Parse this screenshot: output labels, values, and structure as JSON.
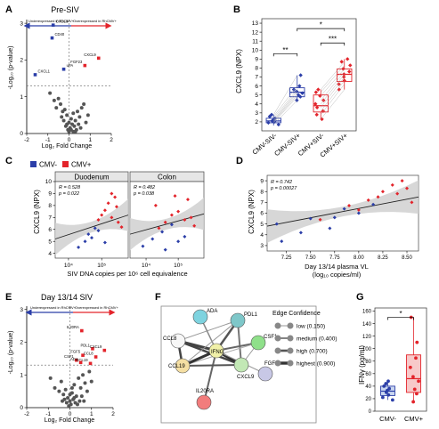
{
  "panels": {
    "A": {
      "letter": "A",
      "title": "Pre-SIV",
      "xlabel": "Log₂ Fold Change",
      "ylabel": "-Log₁₀ (p-value)",
      "arrow_left": "Underexpressed in RhCMV+",
      "arrow_right": "Overexpressed in RhCMV+",
      "xticks": [
        "-2",
        "-1",
        "0",
        "1",
        "2"
      ],
      "yticks": [
        "0",
        "1",
        "2",
        "3"
      ],
      "labels": [
        "CXCL1",
        "CD40",
        "uPA",
        "CXCL8",
        "FGF23",
        "CXCL9"
      ]
    },
    "B": {
      "letter": "B",
      "ylabel": "CXCL9 (NPX)",
      "categories": [
        "CMV-SIV-",
        "CMV-SIV+",
        "CMV+SIV-",
        "CMV+SIV+"
      ],
      "yticks": [
        "2",
        "3",
        "4",
        "5",
        "6",
        "7",
        "8",
        "9",
        "10",
        "11",
        "12",
        "13"
      ],
      "sig": [
        "**",
        "***",
        "*"
      ]
    },
    "C": {
      "letter": "C",
      "legend": [
        "CMV-",
        "CMV+"
      ],
      "facets": [
        "Duodenum",
        "Colon"
      ],
      "stats": [
        [
          "R = 0.528",
          "p = 0.022"
        ],
        [
          "R = 0.482",
          "p = 0.038"
        ]
      ],
      "ylabel": "CXCL9 (NPX)",
      "xlabel": "SIV DNA copies per 10⁶ cell equivalence",
      "yticks": [
        "4",
        "5",
        "6",
        "7",
        "8",
        "9",
        "10"
      ],
      "xticks": [
        "10⁴",
        "10⁵"
      ]
    },
    "D": {
      "letter": "D",
      "stats": [
        "R = 0.742",
        "p = 0.00027"
      ],
      "ylabel": "CXCL9 (NPX)",
      "xlabel1": "Day 13/14 plasma VL",
      "xlabel2": "(log₁₀ copies/ml)",
      "xticks": [
        "7.25",
        "7.50",
        "7.75",
        "8.00",
        "8.25",
        "8.50"
      ],
      "yticks": [
        "3",
        "4",
        "5",
        "6",
        "7",
        "8",
        "9"
      ]
    },
    "E": {
      "letter": "E",
      "title": "Day 13/14 SIV",
      "xlabel": "Log₂ Fold Change",
      "ylabel": "-Log₁₀ (p-value)",
      "arrow_left": "Underexpressed in RhCMV+",
      "arrow_right": "Overexpressed in RhCMV+",
      "xticks": [
        "-2",
        "-1",
        "0",
        "1",
        "2"
      ],
      "yticks": [
        "0",
        "1",
        "2",
        "3"
      ],
      "labels": [
        "IL20RA",
        "PDL1",
        "CXCL9",
        "FGF5",
        "CCL8",
        "CSF1",
        "CCL19",
        "ADA"
      ]
    },
    "F": {
      "letter": "F",
      "nodes": [
        "ADA",
        "PDL1",
        "CCL8",
        "CSF1",
        "IFNG",
        "CCL19",
        "FGF5",
        "CXCL9",
        "IL20RA"
      ],
      "legend_title": "Edge Confidence",
      "legend": [
        "low (0.150)",
        "medium (0.400)",
        "high (0.700)",
        "highest (0.900)"
      ]
    },
    "G": {
      "letter": "G",
      "ylabel": "IFNγ (pg/ml)",
      "categories": [
        "CMV-",
        "CMV+"
      ],
      "yticks": [
        "0",
        "20",
        "40",
        "60",
        "80",
        "100",
        "120",
        "140",
        "160"
      ],
      "sig": "*"
    }
  },
  "colors": {
    "cmv_neg": "#2b3ea8",
    "cmv_pos": "#e3242b",
    "nonsig": "#555555",
    "band": "#d0d0d0"
  },
  "chart_data": [
    {
      "type": "scatter",
      "panel": "A",
      "title": "Pre-SIV",
      "xlabel": "Log2 Fold Change",
      "ylabel": "-Log10 (p-value)",
      "xlim": [
        -2,
        2
      ],
      "ylim": [
        0,
        3.1
      ],
      "threshold_y": 1.3,
      "highlighted": [
        {
          "label": "CXCL1",
          "x": -1.6,
          "y": 1.6,
          "group": "under"
        },
        {
          "label": "CD40",
          "x": -0.8,
          "y": 2.6,
          "group": "under"
        },
        {
          "label": "uPA",
          "x": -0.25,
          "y": 1.75,
          "group": "under"
        },
        {
          "label": "CXCL8",
          "x": -0.75,
          "y": 2.95,
          "group": "under"
        },
        {
          "label": "FGF23",
          "x": 0.75,
          "y": 1.85,
          "group": "over"
        },
        {
          "label": "CXCL9",
          "x": 1.4,
          "y": 2.05,
          "group": "over"
        }
      ],
      "other_points": [
        [
          -0.9,
          1.1
        ],
        [
          -0.7,
          0.9
        ],
        [
          -0.5,
          0.95
        ],
        [
          -0.6,
          0.7
        ],
        [
          -0.4,
          0.8
        ],
        [
          -0.3,
          0.6
        ],
        [
          -0.2,
          0.65
        ],
        [
          -0.1,
          0.5
        ],
        [
          0,
          0.3
        ],
        [
          0.1,
          0.4
        ],
        [
          0.2,
          0.55
        ],
        [
          0.3,
          0.35
        ],
        [
          0.4,
          0.6
        ],
        [
          0.5,
          0.45
        ],
        [
          0.6,
          0.7
        ],
        [
          0.7,
          0.8
        ],
        [
          -0.15,
          0.2
        ],
        [
          0.05,
          0.15
        ],
        [
          0.15,
          0.25
        ],
        [
          -0.05,
          0.1
        ],
        [
          0.25,
          0.2
        ],
        [
          0.35,
          0.1
        ],
        [
          -0.25,
          0.35
        ],
        [
          0.45,
          0.25
        ],
        [
          -0.35,
          0.45
        ],
        [
          0.55,
          0.15
        ],
        [
          0,
          0.05
        ],
        [
          0.1,
          0.1
        ],
        [
          0.2,
          0.05
        ],
        [
          -0.1,
          0.25
        ],
        [
          0.3,
          0.05
        ],
        [
          0.8,
          0.3
        ],
        [
          0.9,
          0.5
        ]
      ]
    },
    {
      "type": "box",
      "panel": "B",
      "ylabel": "CXCL9 (NPX)",
      "ylim": [
        1,
        13.5
      ],
      "categories": [
        "CMV-SIV-",
        "CMV-SIV+",
        "CMV+SIV-",
        "CMV+SIV+"
      ],
      "series": [
        {
          "category": "CMV-SIV-",
          "group": "CMV-",
          "q1": 1.9,
          "median": 2.1,
          "q3": 2.4,
          "whisker_low": 1.6,
          "whisker_high": 2.8,
          "points": [
            1.7,
            1.9,
            2.0,
            2.1,
            2.2,
            2.4,
            2.6,
            2.8
          ]
        },
        {
          "category": "CMV-SIV+",
          "group": "CMV-",
          "q1": 4.8,
          "median": 5.3,
          "q3": 5.8,
          "whisker_low": 4.4,
          "whisker_high": 7.2,
          "points": [
            4.4,
            4.8,
            5.0,
            5.2,
            5.4,
            5.6,
            6.0,
            7.2
          ]
        },
        {
          "category": "CMV+SIV-",
          "group": "CMV+",
          "q1": 3.1,
          "median": 3.8,
          "q3": 5.0,
          "whisker_low": 2.3,
          "whisker_high": 5.6,
          "points": [
            2.3,
            2.8,
            3.2,
            3.6,
            4.0,
            4.4,
            4.9,
            5.3,
            5.6
          ]
        },
        {
          "category": "CMV+SIV+",
          "group": "CMV+",
          "q1": 6.5,
          "median": 7.3,
          "q3": 7.9,
          "whisker_low": 5.6,
          "whisker_high": 9.0,
          "points": [
            5.6,
            6.2,
            6.6,
            7.0,
            7.3,
            7.6,
            7.9,
            8.3,
            8.7,
            9.0
          ]
        }
      ],
      "significance": [
        {
          "from": 0,
          "to": 1,
          "label": "**"
        },
        {
          "from": 2,
          "to": 3,
          "label": "***"
        },
        {
          "from": 1,
          "to": 3,
          "label": "*"
        }
      ]
    },
    {
      "type": "scatter",
      "panel": "C",
      "ylabel": "CXCL9 (NPX)",
      "xlabel": "SIV DNA copies per 10^6 cell equivalence",
      "ylim": [
        3.6,
        10
      ],
      "facets": [
        {
          "name": "Duodenum",
          "R": 0.528,
          "p": 0.022,
          "xlim_log10": [
            3.6,
            5.8
          ],
          "fit": [
            [
              3.6,
              5.2
            ],
            [
              5.8,
              7.2
            ]
          ],
          "cmv_neg": [
            [
              4.3,
              4.5
            ],
            [
              4.5,
              5.0
            ],
            [
              4.7,
              5.3
            ],
            [
              4.9,
              5.9
            ],
            [
              5.1,
              4.9
            ],
            [
              4.6,
              5.6
            ],
            [
              4.8,
              6.1
            ]
          ],
          "cmv_pos": [
            [
              4.9,
              6.8
            ],
            [
              5.1,
              7.6
            ],
            [
              5.2,
              8.2
            ],
            [
              5.3,
              7.0
            ],
            [
              5.4,
              8.7
            ],
            [
              5.5,
              6.6
            ],
            [
              5.6,
              6.2
            ],
            [
              5.0,
              7.2
            ],
            [
              5.3,
              9.0
            ],
            [
              5.45,
              7.9
            ]
          ]
        },
        {
          "name": "Colon",
          "R": 0.482,
          "p": 0.038,
          "xlim_log10": [
            3.5,
            5.8
          ],
          "fit": [
            [
              3.5,
              5.6
            ],
            [
              5.8,
              7.3
            ]
          ],
          "cmv_neg": [
            [
              3.9,
              4.6
            ],
            [
              4.2,
              5.2
            ],
            [
              4.5,
              5.8
            ],
            [
              4.8,
              6.4
            ],
            [
              5.0,
              5.0
            ],
            [
              5.2,
              5.4
            ],
            [
              4.6,
              4.3
            ]
          ],
          "cmv_pos": [
            [
              4.3,
              8.0
            ],
            [
              4.6,
              6.6
            ],
            [
              4.8,
              7.2
            ],
            [
              5.0,
              7.5
            ],
            [
              5.2,
              6.8
            ],
            [
              5.3,
              8.5
            ],
            [
              5.4,
              7.0
            ],
            [
              5.5,
              6.3
            ],
            [
              4.4,
              6.1
            ],
            [
              4.9,
              8.8
            ]
          ]
        }
      ]
    },
    {
      "type": "scatter",
      "panel": "D",
      "ylabel": "CXCL9 (NPX)",
      "xlabel": "Day 13/14 plasma VL (log10 copies/ml)",
      "R": 0.742,
      "p": 0.00027,
      "xlim": [
        7.05,
        8.62
      ],
      "ylim": [
        2.5,
        9.5
      ],
      "fit": [
        [
          7.05,
          4.8
        ],
        [
          8.62,
          7.5
        ]
      ],
      "cmv_neg": [
        [
          7.15,
          5.0
        ],
        [
          7.2,
          3.4
        ],
        [
          7.4,
          4.2
        ],
        [
          7.5,
          5.5
        ],
        [
          7.7,
          4.6
        ],
        [
          7.75,
          5.6
        ],
        [
          7.85,
          6.4
        ],
        [
          8.0,
          6.0
        ],
        [
          8.15,
          6.8
        ]
      ],
      "cmv_pos": [
        [
          7.6,
          5.4
        ],
        [
          7.9,
          6.7
        ],
        [
          8.0,
          6.3
        ],
        [
          8.1,
          7.2
        ],
        [
          8.2,
          7.5
        ],
        [
          8.25,
          8.0
        ],
        [
          8.35,
          8.6
        ],
        [
          8.4,
          7.8
        ],
        [
          8.45,
          9.0
        ],
        [
          8.5,
          8.3
        ],
        [
          8.55,
          7.0
        ]
      ]
    },
    {
      "type": "scatter",
      "panel": "E",
      "title": "Day 13/14 SIV",
      "xlabel": "Log2 Fold Change",
      "ylabel": "-Log10 (p-value)",
      "xlim": [
        -2,
        2
      ],
      "ylim": [
        0,
        3.1
      ],
      "threshold_y": 1.3,
      "highlighted": [
        {
          "label": "IL20RA",
          "x": 0.55,
          "y": 2.35,
          "group": "over"
        },
        {
          "label": "PDL1",
          "x": 1.05,
          "y": 1.8,
          "group": "over"
        },
        {
          "label": "CXCL9",
          "x": 1.6,
          "y": 1.75,
          "group": "over"
        },
        {
          "label": "FGF5",
          "x": 0.6,
          "y": 1.6,
          "group": "over"
        },
        {
          "label": "CCL8",
          "x": 1.2,
          "y": 1.55,
          "group": "over"
        },
        {
          "label": "CSF1",
          "x": 0.3,
          "y": 1.45,
          "group": "over"
        },
        {
          "label": "CCL19",
          "x": 0.95,
          "y": 1.35,
          "group": "over"
        },
        {
          "label": "ADA",
          "x": 0.5,
          "y": 1.38,
          "group": "over"
        }
      ],
      "other_points": [
        [
          -0.7,
          0.6
        ],
        [
          -0.5,
          0.5
        ],
        [
          -0.4,
          0.8
        ],
        [
          -0.3,
          0.4
        ],
        [
          -0.2,
          0.55
        ],
        [
          -0.1,
          0.3
        ],
        [
          0,
          0.2
        ],
        [
          0.1,
          0.45
        ],
        [
          0.2,
          0.7
        ],
        [
          0.3,
          0.35
        ],
        [
          0.4,
          0.9
        ],
        [
          0.5,
          0.6
        ],
        [
          0.6,
          1.0
        ],
        [
          0.7,
          0.75
        ],
        [
          0.8,
          0.5
        ],
        [
          0.9,
          1.1
        ],
        [
          1.0,
          0.8
        ],
        [
          -0.15,
          0.15
        ],
        [
          0.05,
          0.1
        ],
        [
          0.15,
          0.25
        ],
        [
          -0.05,
          0.05
        ],
        [
          0.25,
          0.15
        ],
        [
          0.35,
          0.1
        ],
        [
          -0.25,
          0.25
        ],
        [
          0.45,
          0.2
        ],
        [
          0,
          0.4
        ],
        [
          0.1,
          0.6
        ],
        [
          0.2,
          0.3
        ],
        [
          -0.35,
          0.2
        ],
        [
          0.55,
          0.35
        ],
        [
          0.65,
          0.2
        ],
        [
          -0.9,
          0.9
        ]
      ]
    },
    {
      "type": "box",
      "panel": "G",
      "ylabel": "IFNγ (pg/ml)",
      "ylim": [
        0,
        165
      ],
      "categories": [
        "CMV-",
        "CMV+"
      ],
      "series": [
        {
          "category": "CMV-",
          "group": "CMV-",
          "q1": 25,
          "median": 32,
          "q3": 40,
          "whisker_low": 18,
          "whisker_high": 48,
          "points": [
            18,
            22,
            26,
            30,
            33,
            36,
            40,
            44,
            48
          ]
        },
        {
          "category": "CMV+",
          "group": "CMV+",
          "q1": 30,
          "median": 52,
          "q3": 90,
          "whisker_low": 15,
          "whisker_high": 150,
          "points": [
            15,
            28,
            35,
            48,
            55,
            70,
            85,
            110,
            150
          ]
        }
      ],
      "significance": [
        {
          "from": 0,
          "to": 1,
          "label": "*"
        }
      ]
    }
  ]
}
